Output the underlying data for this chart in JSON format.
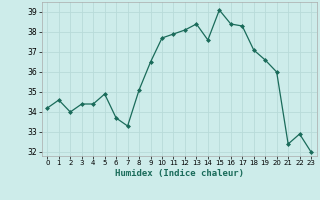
{
  "x": [
    0,
    1,
    2,
    3,
    4,
    5,
    6,
    7,
    8,
    9,
    10,
    11,
    12,
    13,
    14,
    15,
    16,
    17,
    18,
    19,
    20,
    21,
    22,
    23
  ],
  "y": [
    34.2,
    34.6,
    34.0,
    34.4,
    34.4,
    34.9,
    33.7,
    33.3,
    35.1,
    36.5,
    37.7,
    37.9,
    38.1,
    38.4,
    37.6,
    39.1,
    38.4,
    38.3,
    37.1,
    36.6,
    36.0,
    32.4,
    32.9,
    32.0
  ],
  "line_color": "#1a6b5a",
  "marker": "D",
  "marker_size": 2.0,
  "bg_color": "#cdecea",
  "grid_color": "#b8dbd9",
  "xlabel": "Humidex (Indice chaleur)",
  "xlim": [
    -0.5,
    23.5
  ],
  "ylim": [
    31.8,
    39.5
  ],
  "yticks": [
    32,
    33,
    34,
    35,
    36,
    37,
    38,
    39
  ],
  "xticks": [
    0,
    1,
    2,
    3,
    4,
    5,
    6,
    7,
    8,
    9,
    10,
    11,
    12,
    13,
    14,
    15,
    16,
    17,
    18,
    19,
    20,
    21,
    22,
    23
  ]
}
